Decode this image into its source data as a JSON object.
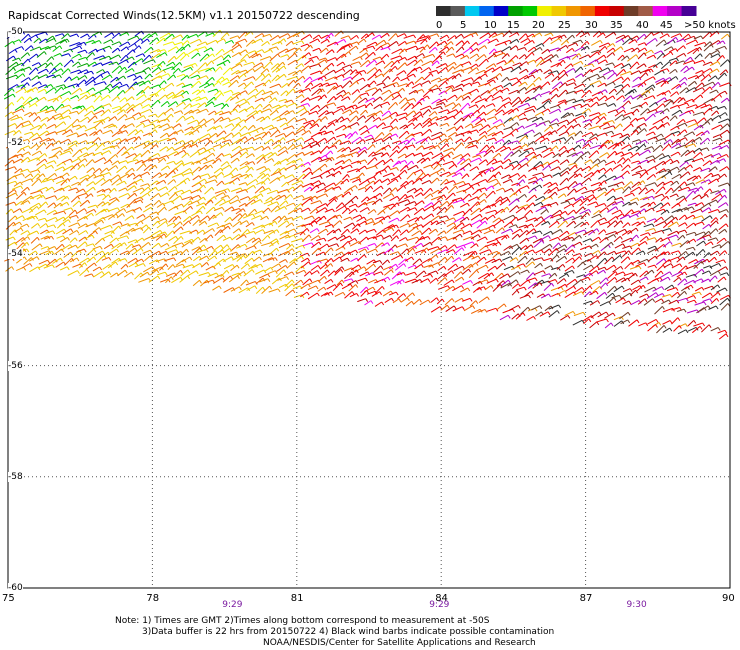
{
  "title": "Rapidscat Corrected Winds(12.5KM) v1.1 20150722 descending",
  "legend": {
    "labels": [
      "0",
      "5",
      "10",
      "15",
      "20",
      "25",
      "30",
      "35",
      "40",
      "45",
      ">50 knots"
    ],
    "colors": [
      "#2e2e2e",
      "#5a5a5a",
      "#00c8f0",
      "#0064f0",
      "#0000c8",
      "#00a000",
      "#00c800",
      "#f0f000",
      "#f0c800",
      "#f09600",
      "#f06400",
      "#f00000",
      "#c80000",
      "#6e3c28",
      "#a05a46",
      "#f000f0",
      "#b400c8",
      "#460096"
    ]
  },
  "x_axis": {
    "ticks": [
      "75",
      "78",
      "81",
      "84",
      "87",
      "90"
    ],
    "range": [
      75,
      90
    ]
  },
  "y_axis": {
    "ticks": [
      "-50",
      "-52",
      "-54",
      "-56",
      "-58",
      "-60"
    ],
    "range": [
      -60,
      -50
    ]
  },
  "times": [
    {
      "label": "9:29",
      "lon": 79.7
    },
    {
      "label": "9:29",
      "lon": 84.0
    },
    {
      "label": "9:30",
      "lon": 88.1
    }
  ],
  "notes": [
    "Note: 1) Times are GMT 2)Times along bottom correspond to measurement at -50S",
    "3)Data buffer is 22 hrs from 20150722 4) Black wind barbs indicate possible contamination",
    "NOAA/NESDIS/Center for Satellite Applications and Research"
  ]
}
